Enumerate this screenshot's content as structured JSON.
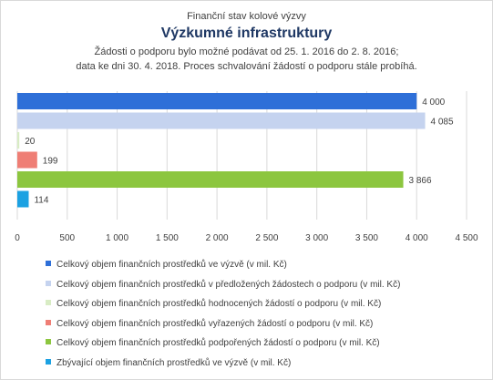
{
  "chart_data": {
    "type": "bar",
    "orientation": "horizontal",
    "supertitle": "Finanční stav kolové výzvy",
    "title": "Výzkumné infrastruktury",
    "subtitle_line1": "Žádosti o podporu bylo možné  podávat od 25. 1. 2016 do 2. 8. 2016;",
    "subtitle_line2": "data ke dni 30. 4. 2018. Proces schvalování žádostí o podporu stále probíhá.",
    "xlim": [
      0,
      4500
    ],
    "xticks": [
      0,
      500,
      1000,
      1500,
      2000,
      2500,
      3000,
      3500,
      4000,
      4500
    ],
    "xtick_labels": [
      "0",
      "500",
      "1 000",
      "1 500",
      "2 000",
      "2 500",
      "3 000",
      "3 500",
      "4 000",
      "4 500"
    ],
    "grid": true,
    "legend_position": "bottom",
    "series": [
      {
        "name": "Celkový objem finančních prostředků ve výzvě (v mil. Kč)",
        "value": 4000,
        "label": "4 000",
        "color": "#2e6fd8"
      },
      {
        "name": "Celkový objem finančních prostředků v předložených žádostech o podporu (v mil. Kč)",
        "value": 4085,
        "label": "4 085",
        "color": "#c5d3ef"
      },
      {
        "name": "Celkový objem finančních prostředků hodnocených žádostí o podporu (v mil. Kč)",
        "value": 20,
        "label": "20",
        "color": "#d8ecc4"
      },
      {
        "name": "Celkový objem finančních prostředků vyřazených žádostí o podporu (v mil. Kč)",
        "value": 199,
        "label": "199",
        "color": "#ef7e75"
      },
      {
        "name": "Celkový objem finančních prostředků podpořených žádostí o podporu (v mil. Kč)",
        "value": 3866,
        "label": "3 866",
        "color": "#8cc63f"
      },
      {
        "name": "Zbývající objem finančních prostředků ve výzvě (v mil. Kč)",
        "value": 114,
        "label": "114",
        "color": "#1ba1e2"
      }
    ]
  }
}
